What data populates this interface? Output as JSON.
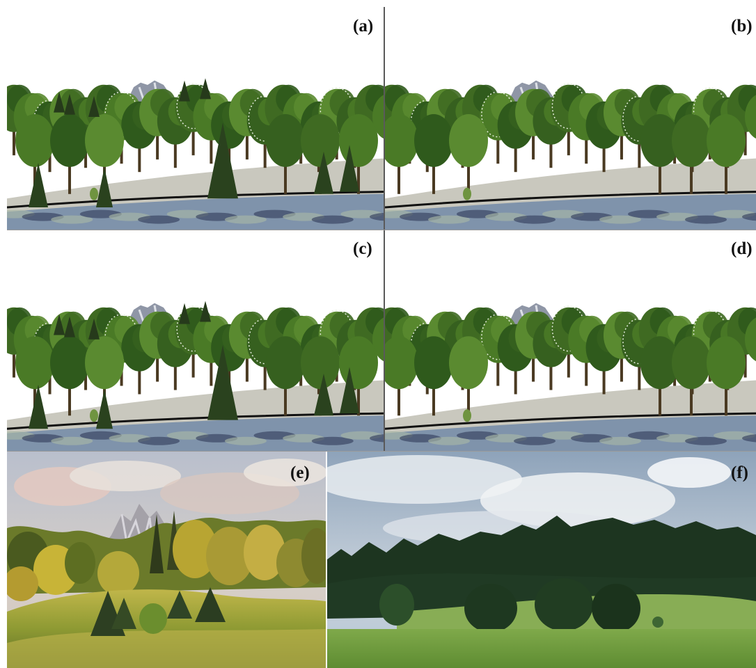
{
  "panels": {
    "a": {
      "label": "(a)"
    },
    "b": {
      "label": "(b)"
    },
    "c": {
      "label": "(c)"
    },
    "d": {
      "label": "(d)"
    },
    "e": {
      "label": "(e)"
    },
    "f": {
      "label": "(f)"
    }
  },
  "colors": {
    "sky_render": "#ffffff",
    "tree_dark": "#2f4f1c",
    "tree_mid": "#4a7a26",
    "ground_grey": "#c8c8c0",
    "terrain_blue": "#7d92ad",
    "painting_sky": "#cfcac8",
    "painting_yellow": "#b8a83a",
    "photo_sky": "#aebfd3",
    "photo_forest": "#1f3a22",
    "photo_meadow": "#6a9a3f"
  },
  "icons": {
    "mountain": "rock-peak-icon",
    "conifer": "spruce-tree-icon",
    "deciduous": "broadleaf-tree-icon"
  }
}
